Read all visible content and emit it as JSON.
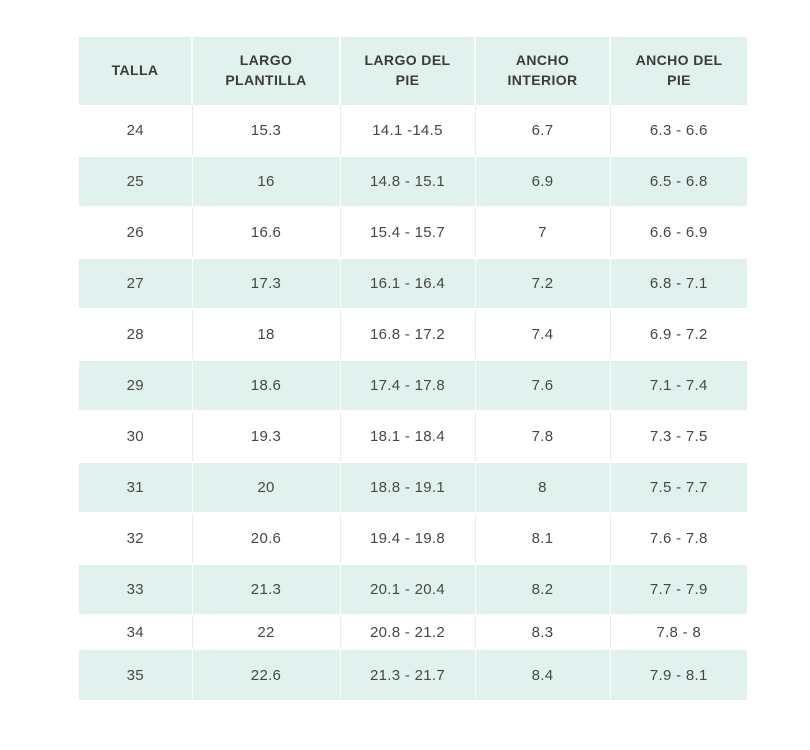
{
  "colors": {
    "header_bg": "#e1f2ee",
    "stripe_bg": "#e1f2ee",
    "header_text": "#3b3b3b",
    "cell_text": "#474747"
  },
  "table": {
    "header_labels": [
      "TALLA",
      "LARGO\nPLANTILLA",
      "LARGO DEL\nPIE",
      "ANCHO\nINTERIOR",
      "ANCHO DEL\nPIE"
    ]
  },
  "chart_data": {
    "type": "table",
    "columns": [
      "TALLA",
      "LARGO PLANTILLA",
      "LARGO DEL PIE",
      "ANCHO INTERIOR",
      "ANCHO DEL PIE"
    ],
    "rows": [
      [
        "24",
        "15.3",
        "14.1 -14.5",
        "6.7",
        "6.3 - 6.6"
      ],
      [
        "25",
        "16",
        "14.8 - 15.1",
        "6.9",
        "6.5 - 6.8"
      ],
      [
        "26",
        "16.6",
        "15.4 - 15.7",
        "7",
        "6.6 - 6.9"
      ],
      [
        "27",
        "17.3",
        "16.1 - 16.4",
        "7.2",
        "6.8 - 7.1"
      ],
      [
        "28",
        "18",
        "16.8 - 17.2",
        "7.4",
        "6.9 - 7.2"
      ],
      [
        "29",
        "18.6",
        "17.4 - 17.8",
        "7.6",
        "7.1 - 7.4"
      ],
      [
        "30",
        "19.3",
        "18.1 - 18.4",
        "7.8",
        "7.3 - 7.5"
      ],
      [
        "31",
        "20",
        "18.8 - 19.1",
        "8",
        "7.5 - 7.7"
      ],
      [
        "32",
        "20.6",
        "19.4 - 19.8",
        "8.1",
        "7.6 - 7.8"
      ],
      [
        "33",
        "21.3",
        "20.1 - 20.4",
        "8.2",
        "7.7 - 7.9"
      ],
      [
        "34",
        "22",
        "20.8 - 21.2",
        "8.3",
        "7.8 - 8"
      ],
      [
        "35",
        "22.6",
        "21.3 - 21.7",
        "8.4",
        "7.9 - 8.1"
      ]
    ],
    "layout": {
      "stripe_pattern": "alternating white / mint starting with white",
      "grid": "faint vertical separators between columns",
      "legend": "none"
    }
  }
}
